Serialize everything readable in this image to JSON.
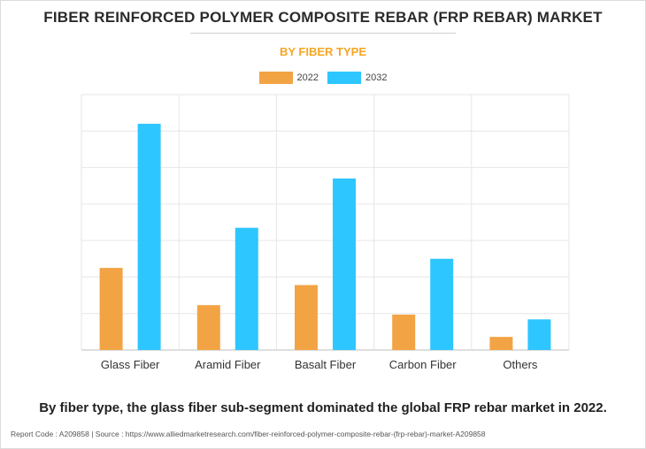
{
  "title": "FIBER REINFORCED POLYMER COMPOSITE REBAR (FRP REBAR) MARKET",
  "subtitle": "BY FIBER TYPE",
  "colors": {
    "2022": "#f2a445",
    "2032": "#2ec6ff",
    "subtitle": "#f5a623"
  },
  "chart_data": {
    "type": "bar",
    "categories": [
      "Glass Fiber",
      "Aramid Fiber",
      "Basalt Fiber",
      "Carbon Fiber",
      "Others"
    ],
    "series": [
      {
        "name": "2022",
        "values": [
          2.25,
          1.23,
          1.78,
          0.97,
          0.36
        ]
      },
      {
        "name": "2032",
        "values": [
          6.2,
          3.35,
          4.7,
          2.5,
          0.84
        ]
      }
    ],
    "ylim": [
      0,
      7
    ],
    "grid": true,
    "legend": "top-center",
    "xlabel": "",
    "ylabel": ""
  },
  "footnote": "By fiber type, the glass fiber sub-segment dominated the global FRP rebar market in 2022.",
  "source": "Report Code : A209858  |  Source : https://www.alliedmarketresearch.com/fiber-reinforced-polymer-composite-rebar-(frp-rebar)-market-A209858"
}
